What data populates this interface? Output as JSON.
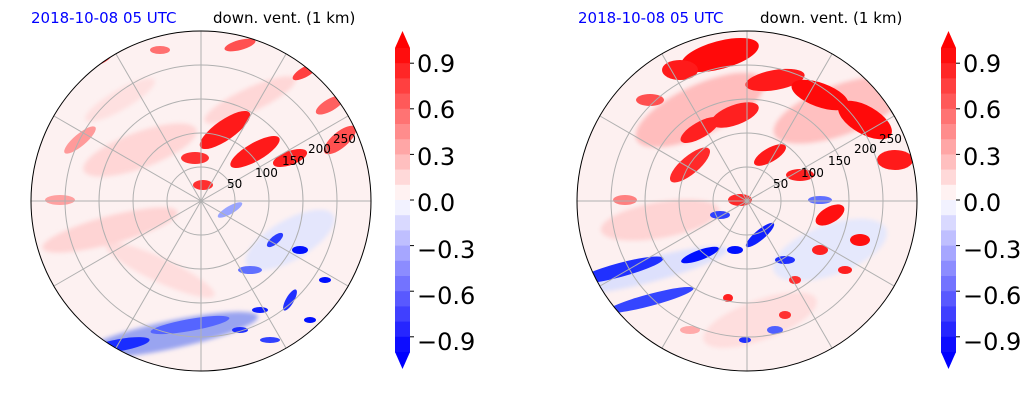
{
  "panels": [
    {
      "time_label": "2018-10-08 05 UTC",
      "field_label": "down. vent. (1 km)",
      "ring_labels": [
        "50",
        "100",
        "150",
        "200",
        "250"
      ],
      "colorbar_ticks": [
        "0.9",
        "0.6",
        "0.3",
        "0.0",
        "−0.3",
        "−0.6",
        "−0.9"
      ]
    },
    {
      "time_label": "2018-10-08 05 UTC",
      "field_label": "down. vent. (1 km)",
      "ring_labels": [
        "50",
        "100",
        "150",
        "200",
        "250"
      ],
      "colorbar_ticks": [
        "0.9",
        "0.6",
        "0.3",
        "0.0",
        "−0.3",
        "−0.6",
        "−0.9"
      ]
    }
  ],
  "colors": {
    "time_label": "#0000ff",
    "positive": "#ff0000",
    "negative": "#0000ff",
    "grid": "#b0b0b0"
  },
  "chart_data": [
    {
      "type": "heatmap",
      "projection": "polar",
      "title": "2018-10-08 05 UTC",
      "subtitle": "down. vent. (1 km)",
      "radial_ticks": [
        50,
        100,
        150,
        200,
        250
      ],
      "colorbar": {
        "vmin": -1.0,
        "vmax": 1.0,
        "ticks": [
          0.9,
          0.6,
          0.3,
          0.0,
          -0.3,
          -0.6,
          -0.9
        ],
        "colormap": "bwr",
        "extend": "both"
      },
      "grid": true
    },
    {
      "type": "heatmap",
      "projection": "polar",
      "title": "2018-10-08 05 UTC",
      "subtitle": "down. vent. (1 km)",
      "radial_ticks": [
        50,
        100,
        150,
        200,
        250
      ],
      "colorbar": {
        "vmin": -1.0,
        "vmax": 1.0,
        "ticks": [
          0.9,
          0.6,
          0.3,
          0.0,
          -0.3,
          -0.6,
          -0.9
        ],
        "colormap": "bwr",
        "extend": "both"
      },
      "grid": true
    }
  ]
}
